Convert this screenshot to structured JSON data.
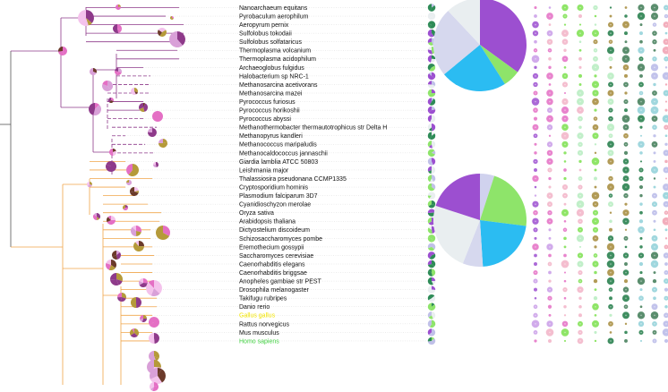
{
  "colors": {
    "archaea_branch": "#8e3a8a",
    "eukaryote_branch": "#f0a54a",
    "root_branch": "#555555",
    "leader": "#d0d0d0",
    "label_default": "#111111",
    "label_gallus": "#f2e400",
    "label_homo": "#3fcf3f"
  },
  "tree": {
    "archaea": [
      {
        "name": "Nanoarchaeum equitans",
        "color": "#111111"
      },
      {
        "name": "Pyrobaculum aerophilum",
        "color": "#111111"
      },
      {
        "name": "Aeropyrum pernix",
        "color": "#111111"
      },
      {
        "name": "Sulfolobus tokodaii",
        "color": "#111111"
      },
      {
        "name": "Sulfolobus solfataricus",
        "color": "#111111"
      },
      {
        "name": "Thermoplasma volcanium",
        "color": "#111111"
      },
      {
        "name": "Thermoplasma acidophilum",
        "color": "#111111"
      },
      {
        "name": "Archaeoglobus fulgidus",
        "color": "#111111"
      },
      {
        "name": "Halobacterium sp NRC-1",
        "color": "#111111"
      },
      {
        "name": "Methanosarcina acetivorans",
        "color": "#111111"
      },
      {
        "name": "Methanosarcina mazei",
        "color": "#111111"
      },
      {
        "name": "Pyrococcus furiosus",
        "color": "#111111"
      },
      {
        "name": "Pyrococcus horikoshii",
        "color": "#111111"
      },
      {
        "name": "Pyrococcus abyssi",
        "color": "#111111"
      },
      {
        "name": "Methanothermobacter thermautotrophicus str Delta H",
        "color": "#111111"
      },
      {
        "name": "Methanopyrus kandleri",
        "color": "#111111"
      },
      {
        "name": "Methanococcus maripaludis",
        "color": "#111111"
      },
      {
        "name": "Methanocaldococcus jannaschii",
        "color": "#111111"
      }
    ],
    "eukaryotes": [
      {
        "name": "Giardia lamblia ATCC 50803",
        "color": "#111111"
      },
      {
        "name": "Leishmania major",
        "color": "#111111"
      },
      {
        "name": "Thalassiosira pseudonana CCMP1335",
        "color": "#111111"
      },
      {
        "name": "Cryptosporidium hominis",
        "color": "#111111"
      },
      {
        "name": "Plasmodium falciparum 3D7",
        "color": "#111111"
      },
      {
        "name": "Cyanidioschyzon merolae",
        "color": "#111111"
      },
      {
        "name": "Oryza sativa",
        "color": "#111111"
      },
      {
        "name": "Arabidopsis thaliana",
        "color": "#111111"
      },
      {
        "name": "Dictyostelium discoideum",
        "color": "#111111"
      },
      {
        "name": "Schizosaccharomyces pombe",
        "color": "#111111"
      },
      {
        "name": "Eremothecium gossypii",
        "color": "#111111"
      },
      {
        "name": "Saccharomyces cerevisiae",
        "color": "#111111"
      },
      {
        "name": "Caenorhabditis elegans",
        "color": "#111111"
      },
      {
        "name": "Caenorhabditis briggsae",
        "color": "#111111"
      },
      {
        "name": "Anopheles gambiae str PEST",
        "color": "#111111"
      },
      {
        "name": "Drosophila melanogaster",
        "color": "#111111"
      },
      {
        "name": "Takifugu rubripes",
        "color": "#111111"
      },
      {
        "name": "Danio rerio",
        "color": "#111111"
      },
      {
        "name": "Gallus gallus",
        "color": "#f2e400"
      },
      {
        "name": "Rattus norvegicus",
        "color": "#111111"
      },
      {
        "name": "Mus musculus",
        "color": "#111111"
      },
      {
        "name": "Homo sapiens",
        "color": "#3fcf3f"
      }
    ]
  },
  "node_pie_palette": [
    "#8e3a8a",
    "#e46fc4",
    "#b59a3a",
    "#f4c2ec",
    "#6b3a2a",
    "#d9a0d8"
  ],
  "big_pies": [
    {
      "slices": [
        {
          "value": 0.35,
          "color": "#9c4fd0"
        },
        {
          "value": 0.06,
          "color": "#8ee46a"
        },
        {
          "value": 0.23,
          "color": "#2bbcf2"
        },
        {
          "value": 0.24,
          "color": "#d6d8ee"
        },
        {
          "value": 0.12,
          "color": "#e9eef0"
        }
      ]
    },
    {
      "slices": [
        {
          "value": 0.05,
          "color": "#d0d2ee"
        },
        {
          "value": 0.22,
          "color": "#8ee46a"
        },
        {
          "value": 0.22,
          "color": "#2bbcf2"
        },
        {
          "value": 0.07,
          "color": "#d6d8ee"
        },
        {
          "value": 0.24,
          "color": "#e9eef0"
        },
        {
          "value": 0.2,
          "color": "#9c4fd0"
        }
      ]
    }
  ],
  "matrix_palette": [
    "#9c4fd0",
    "#c99ce8",
    "#e46fc4",
    "#f2b3c7",
    "#7be04e",
    "#b6ecc0",
    "#a58a3a",
    "#1f7a45",
    "#3e7a55",
    "#8fd0d8",
    "#b7b9e8",
    "#f0a0b0"
  ],
  "mini_pie_palette": [
    "#2e8b57",
    "#9c4fd0",
    "#e9eef0",
    "#8ee46a",
    "#c0c0e8"
  ]
}
